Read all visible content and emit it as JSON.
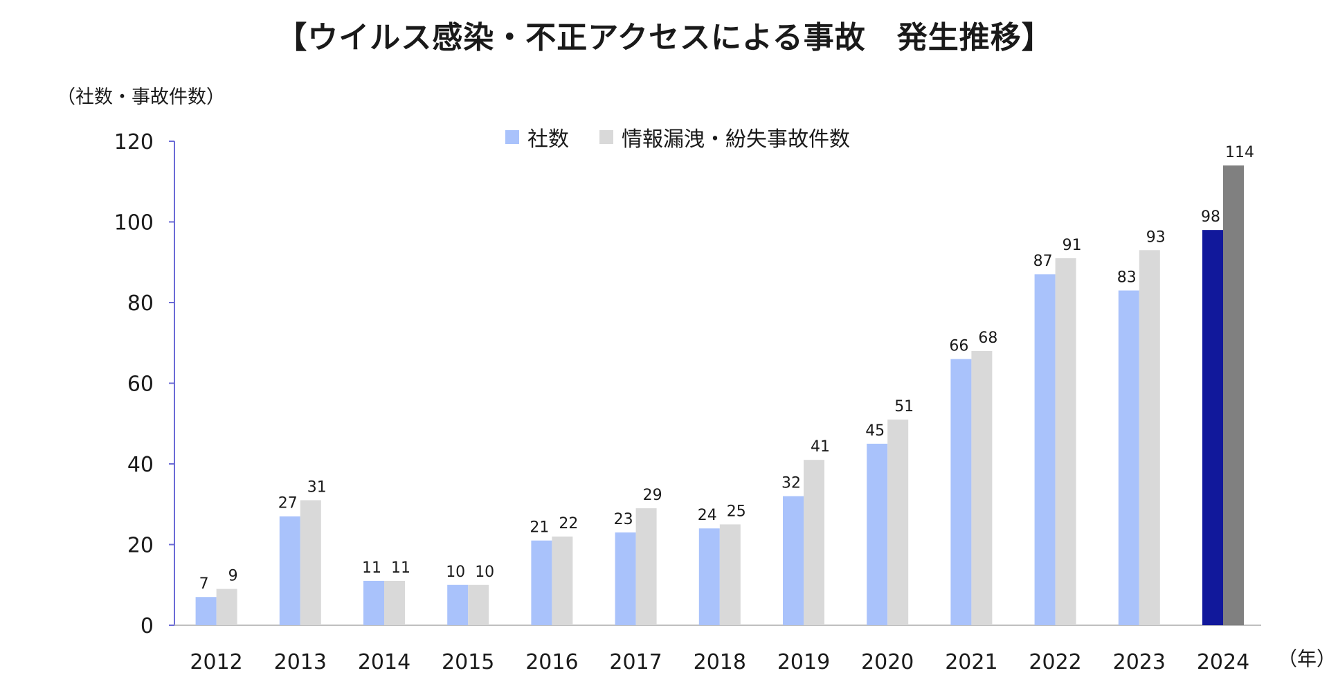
{
  "title": "【ウイルス感染・不正アクセスによる事故　発生推移】",
  "y_axis_label": "（社数・事故件数）",
  "x_axis_unit": "（年）",
  "colors": {
    "series1": "#a9c2fb",
    "series2": "#d9d9d9",
    "series1_highlight": "#11189b",
    "series2_highlight": "#808080",
    "axis": "#6b6bd6",
    "baseline": "#bfbfbf"
  },
  "chart_data": {
    "type": "bar",
    "categories": [
      "2012",
      "2013",
      "2014",
      "2015",
      "2016",
      "2017",
      "2018",
      "2019",
      "2020",
      "2021",
      "2022",
      "2023",
      "2024"
    ],
    "series": [
      {
        "name": "社数",
        "values": [
          7,
          27,
          11,
          10,
          21,
          23,
          24,
          32,
          45,
          66,
          87,
          83,
          98
        ]
      },
      {
        "name": "情報漏洩・紛失事故件数",
        "values": [
          9,
          31,
          11,
          10,
          22,
          29,
          25,
          41,
          51,
          68,
          91,
          93,
          114
        ]
      }
    ],
    "highlight_category": "2024",
    "ylim": [
      0,
      120
    ],
    "yticks": [
      0,
      20,
      40,
      60,
      80,
      100,
      120
    ],
    "grid": false,
    "legend_position": "top-center"
  }
}
